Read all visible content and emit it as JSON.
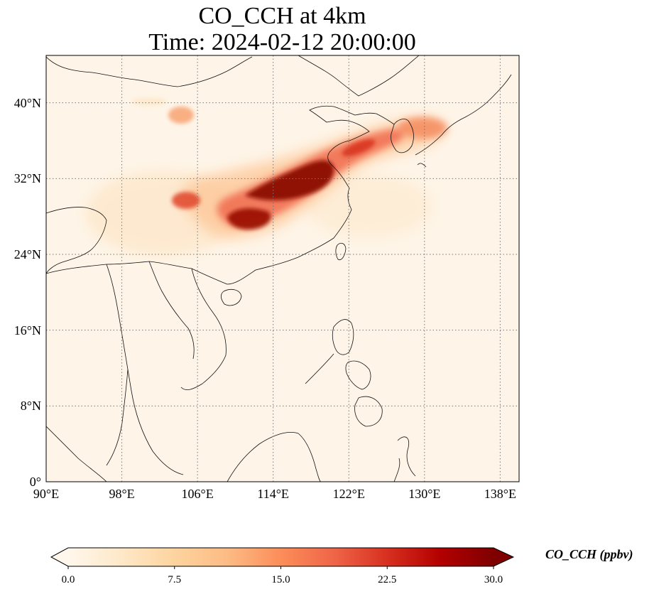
{
  "title": {
    "line1": "CO_CCH at 4km",
    "line2": "Time: 2024-02-12 20:00:00"
  },
  "map": {
    "lon_range": [
      90,
      140
    ],
    "lat_range": [
      0,
      45
    ],
    "gridlines": true,
    "lon_ticks": [
      {
        "value": 90,
        "label": "90°E"
      },
      {
        "value": 98,
        "label": "98°E"
      },
      {
        "value": 106,
        "label": "106°E"
      },
      {
        "value": 114,
        "label": "114°E"
      },
      {
        "value": 122,
        "label": "122°E"
      },
      {
        "value": 130,
        "label": "130°E"
      },
      {
        "value": 138,
        "label": "138°E"
      }
    ],
    "lat_ticks": [
      {
        "value": 0,
        "label": "0°"
      },
      {
        "value": 8,
        "label": "8°N"
      },
      {
        "value": 16,
        "label": "16°N"
      },
      {
        "value": 24,
        "label": "24°N"
      },
      {
        "value": 32,
        "label": "32°N"
      },
      {
        "value": 40,
        "label": "40°N"
      }
    ]
  },
  "colorbar": {
    "label": "CO_CCH (ppbv)",
    "min": 0,
    "max": 30,
    "ticks": [
      "0.0",
      "7.5",
      "15.0",
      "22.5",
      "30.0"
    ],
    "colormap": "OrRd",
    "colors": [
      "#fff7ec",
      "#fee8c8",
      "#fdd49e",
      "#fdbb84",
      "#fc8d59",
      "#ef6548",
      "#d7301f",
      "#b30000",
      "#7f0000"
    ],
    "extend": "both"
  }
}
